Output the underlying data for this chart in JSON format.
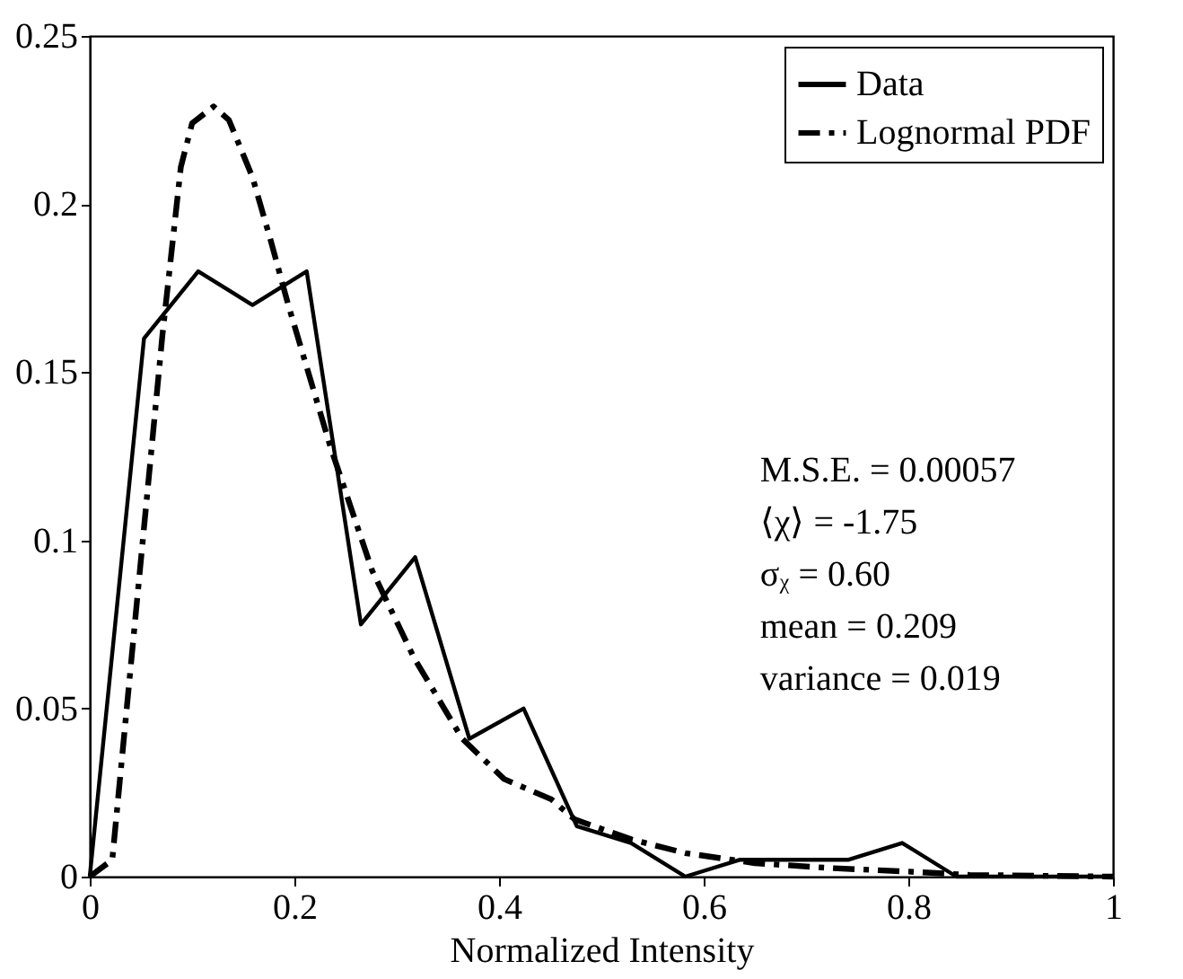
{
  "chart_data": {
    "type": "line",
    "xlabel": "Normalized Intensity",
    "xlim": [
      0,
      1
    ],
    "ylim": [
      0,
      0.25
    ],
    "xticks": [
      0,
      0.2,
      0.4,
      0.6,
      0.8,
      1
    ],
    "yticks": [
      0,
      0.05,
      0.1,
      0.15,
      0.2,
      0.25
    ],
    "grid": false,
    "legend": "top right",
    "marker": "none",
    "series": [
      {
        "name": "Data",
        "color": "#000000",
        "line_style": "solid",
        "x": [
          0,
          0.053,
          0.106,
          0.159,
          0.212,
          0.265,
          0.318,
          0.371,
          0.424,
          0.476,
          0.529,
          0.582,
          0.635,
          0.688,
          0.741,
          0.794,
          0.847,
          0.9,
          0.953,
          1.0
        ],
        "values": [
          0,
          0.16,
          0.18,
          0.17,
          0.18,
          0.075,
          0.095,
          0.041,
          0.05,
          0.015,
          0.01,
          0,
          0.005,
          0.005,
          0.005,
          0.01,
          0,
          0,
          0,
          0
        ]
      },
      {
        "name": "Lognormal PDF",
        "color": "#000000",
        "line_style": "dashed",
        "x": [
          0,
          0.022,
          0.049,
          0.071,
          0.089,
          0.1,
          0.121,
          0.136,
          0.159,
          0.177,
          0.194,
          0.235,
          0.276,
          0.317,
          0.364,
          0.405,
          0.451,
          0.474,
          0.53,
          0.582,
          0.65,
          0.727,
          0.8,
          0.86,
          1.0
        ],
        "values": [
          0,
          0.005,
          0.091,
          0.161,
          0.211,
          0.224,
          0.229,
          0.225,
          0.208,
          0.189,
          0.17,
          0.128,
          0.091,
          0.065,
          0.041,
          0.029,
          0.023,
          0.017,
          0.011,
          0.007,
          0.004,
          0.0025,
          0.0015,
          0.0005,
          0
        ]
      }
    ],
    "annotations": [
      "M.S.E. = 0.00057",
      "⟨χ⟩ = -1.75",
      "σᵪ = 0.60",
      "mean = 0.209",
      "variance = 0.019"
    ]
  }
}
